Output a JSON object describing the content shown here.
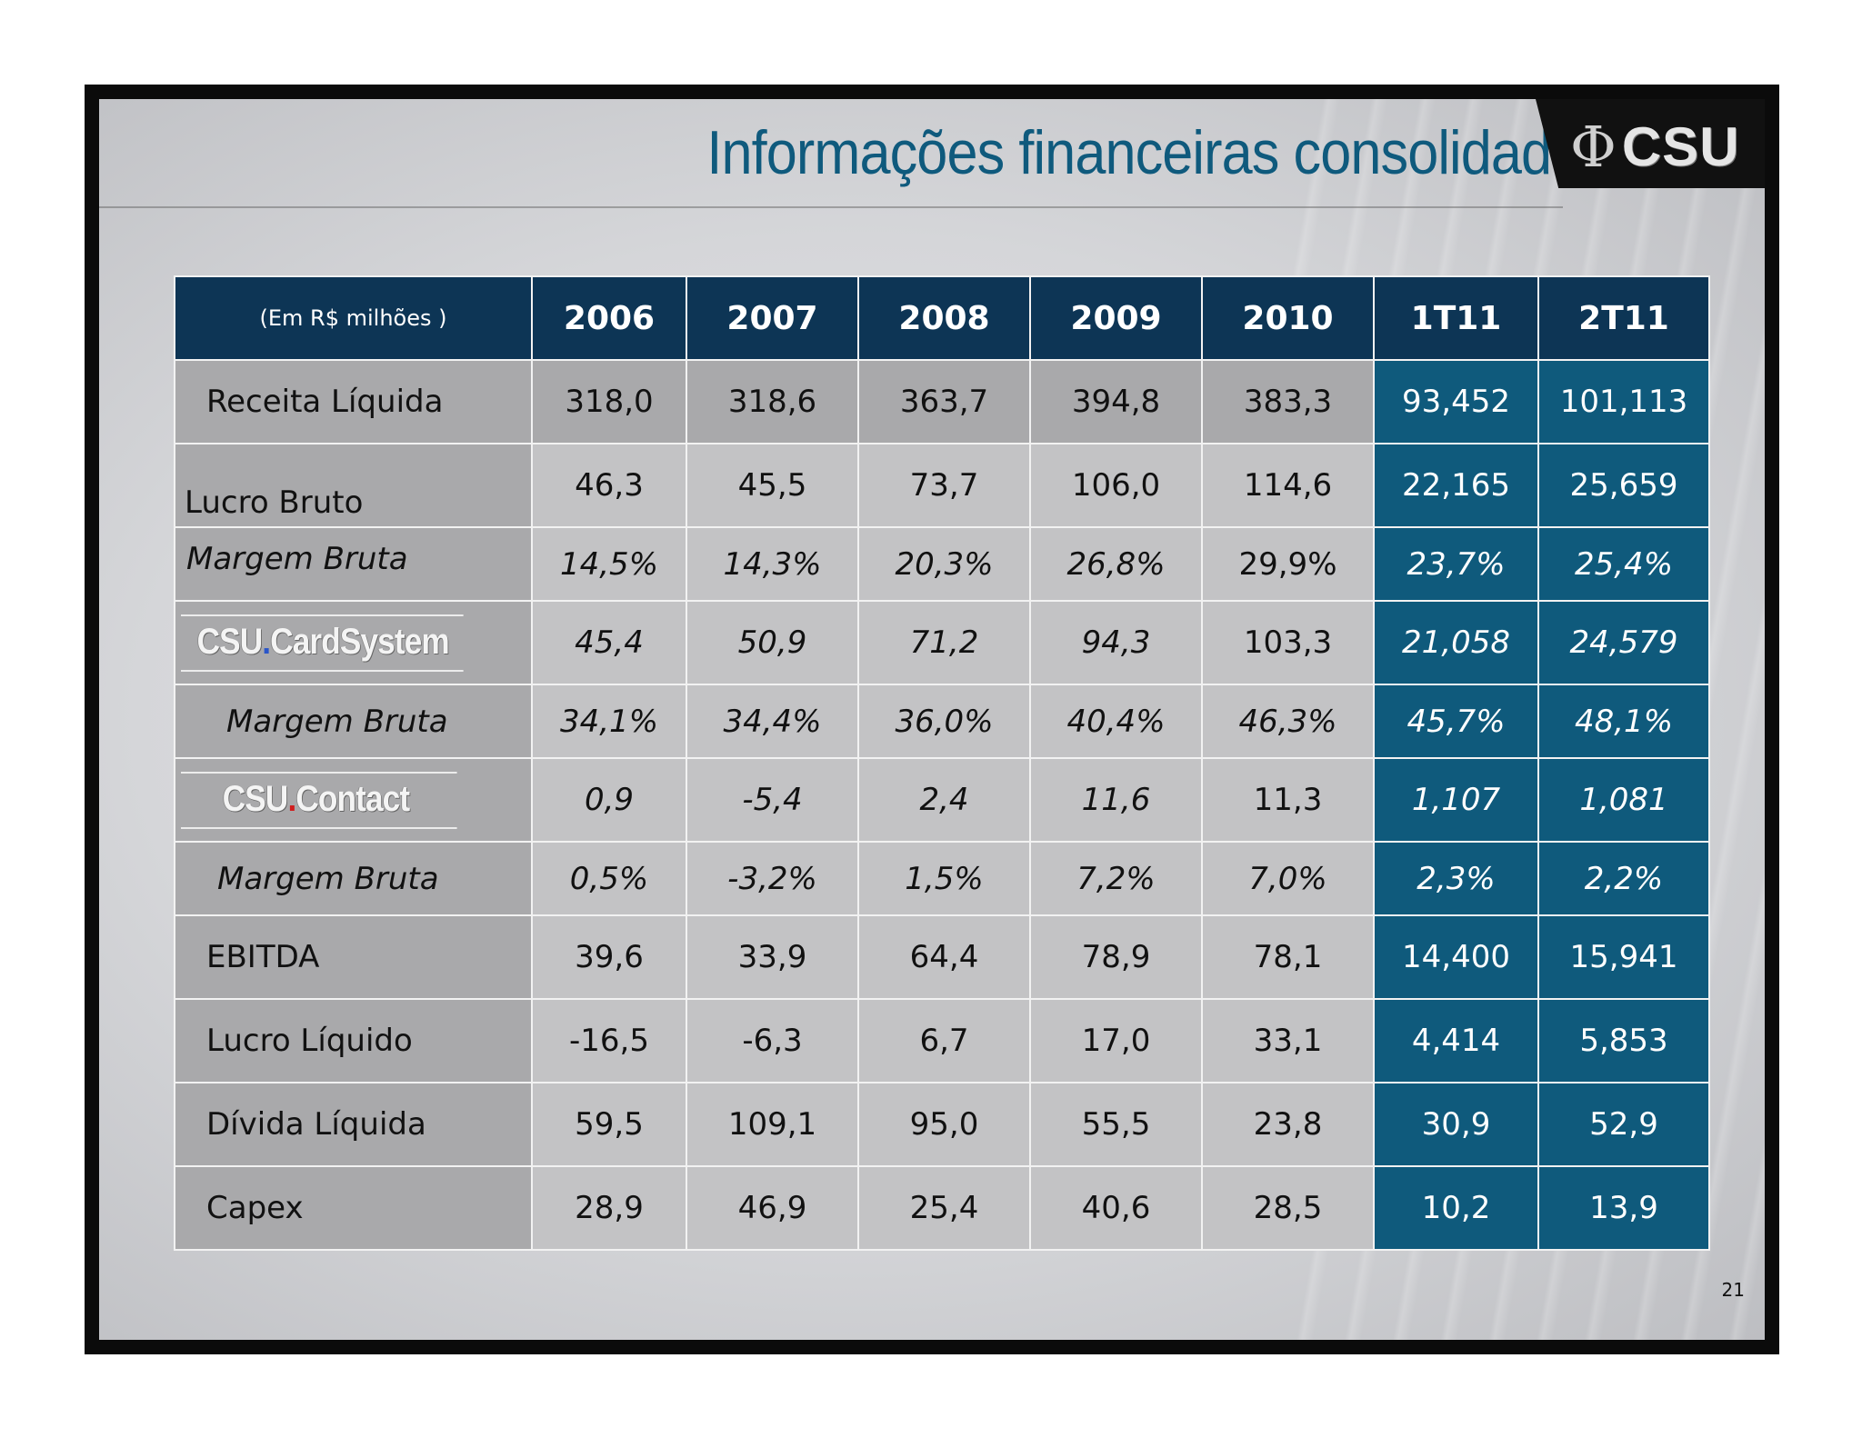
{
  "slide": {
    "title": "Informações financeiras consolidadas",
    "logo": "CSU",
    "page_number": "21"
  },
  "table": {
    "unit_label": "(Em R$ milhões )",
    "columns": [
      "2006",
      "2007",
      "2008",
      "2009",
      "2010",
      "1T11",
      "2T11"
    ],
    "rows": {
      "receita": {
        "label": "Receita Líquida",
        "values": [
          "318,0",
          "318,6",
          "363,7",
          "394,8",
          "383,3",
          "93,452",
          "101,113"
        ]
      },
      "lucro_bruto": {
        "label": "Lucro Bruto",
        "values": [
          "46,3",
          "45,5",
          "73,7",
          "106,0",
          "114,6",
          "22,165",
          "25,659"
        ]
      },
      "margem_bruta": {
        "label": "Margem Bruta",
        "values": [
          "14,5%",
          "14,3%",
          "20,3%",
          "26,8%",
          "29,9%",
          "23,7%",
          "25,4%"
        ]
      },
      "cardsystem": {
        "brand_prefix": "CSU",
        "brand_dot": ".",
        "brand_name": "CardSystem",
        "values": [
          "45,4",
          "50,9",
          "71,2",
          "94,3",
          "103,3",
          "21,058",
          "24,579"
        ]
      },
      "cardsystem_margem": {
        "label": "Margem Bruta",
        "values": [
          "34,1%",
          "34,4%",
          "36,0%",
          "40,4%",
          "46,3%",
          "45,7%",
          "48,1%"
        ]
      },
      "contact": {
        "brand_prefix": "CSU",
        "brand_dot": ".",
        "brand_name": "Contact",
        "values": [
          "0,9",
          "-5,4",
          "2,4",
          "11,6",
          "11,3",
          "1,107",
          "1,081"
        ]
      },
      "contact_margem": {
        "label": "Margem Bruta",
        "values": [
          "0,5%",
          "-3,2%",
          "1,5%",
          "7,2%",
          "7,0%",
          "2,3%",
          "2,2%"
        ]
      },
      "ebitda": {
        "label": "EBITDA",
        "values": [
          "39,6",
          "33,9",
          "64,4",
          "78,9",
          "78,1",
          "14,400",
          "15,941"
        ]
      },
      "lucro_liquido": {
        "label": "Lucro Líquido",
        "values": [
          "-16,5",
          "-6,3",
          "6,7",
          "17,0",
          "33,1",
          "4,414",
          "5,853"
        ]
      },
      "divida": {
        "label": "Dívida Líquida",
        "values": [
          "59,5",
          "109,1",
          "95,0",
          "55,5",
          "23,8",
          "30,9",
          "52,9"
        ]
      },
      "capex": {
        "label": "Capex",
        "values": [
          "28,9",
          "46,9",
          "25,4",
          "40,6",
          "28,5",
          "10,2",
          "13,9"
        ]
      }
    }
  }
}
